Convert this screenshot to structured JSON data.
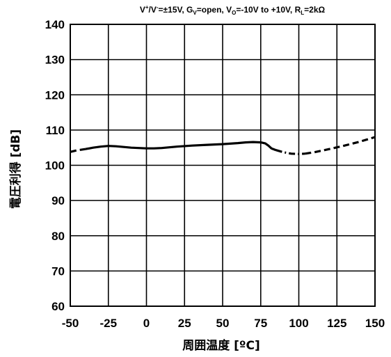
{
  "chart_data": {
    "type": "line",
    "title": "V⁺/V⁻=±15V, GV=open, VO=-10V to +10V, RL=2kΩ",
    "title_parts": {
      "p1": "V",
      "sup1": "+",
      "p2": "/V",
      "sup2": "-",
      "p3": "=±15V, G",
      "sub1": "V",
      "p4": "=open, V",
      "sub2": "O",
      "p5": "=-10V to +10V, R",
      "sub3": "L",
      "p6": "=2kΩ"
    },
    "xlabel": "周囲温度 [ºC]",
    "ylabel": "電圧利得 [dB]",
    "xlim": [
      -50,
      150
    ],
    "ylim": [
      60,
      140
    ],
    "x_ticks": [
      "-50",
      "-25",
      "0",
      "25",
      "50",
      "75",
      "100",
      "125",
      "150"
    ],
    "y_ticks": [
      "140",
      "130",
      "120",
      "110",
      "100",
      "90",
      "80",
      "70",
      "60"
    ],
    "grid": true,
    "series": [
      {
        "style": "dashed",
        "x": [
          -50,
          -46,
          -40
        ],
        "y": [
          103.8,
          104.2,
          104.6
        ]
      },
      {
        "style": "solid",
        "x": [
          -40,
          -35,
          -30,
          -25,
          -20,
          -15,
          -10,
          -5,
          0,
          5,
          10,
          20,
          30,
          40,
          50,
          60,
          65,
          70,
          75,
          78,
          80,
          82,
          85
        ],
        "y": [
          104.6,
          105.0,
          105.3,
          105.5,
          105.4,
          105.2,
          105.0,
          104.9,
          104.8,
          104.8,
          104.9,
          105.3,
          105.6,
          105.8,
          106.0,
          106.3,
          106.5,
          106.6,
          106.5,
          106.2,
          105.6,
          104.8,
          104.3
        ]
      },
      {
        "style": "dash-dot",
        "x": [
          85,
          90,
          95,
          100,
          104
        ],
        "y": [
          104.3,
          103.7,
          103.3,
          103.2,
          103.3
        ]
      },
      {
        "style": "dashed",
        "x": [
          104,
          110,
          120,
          130,
          140,
          150
        ],
        "y": [
          103.3,
          103.7,
          104.6,
          105.6,
          106.7,
          108.0
        ]
      }
    ]
  }
}
